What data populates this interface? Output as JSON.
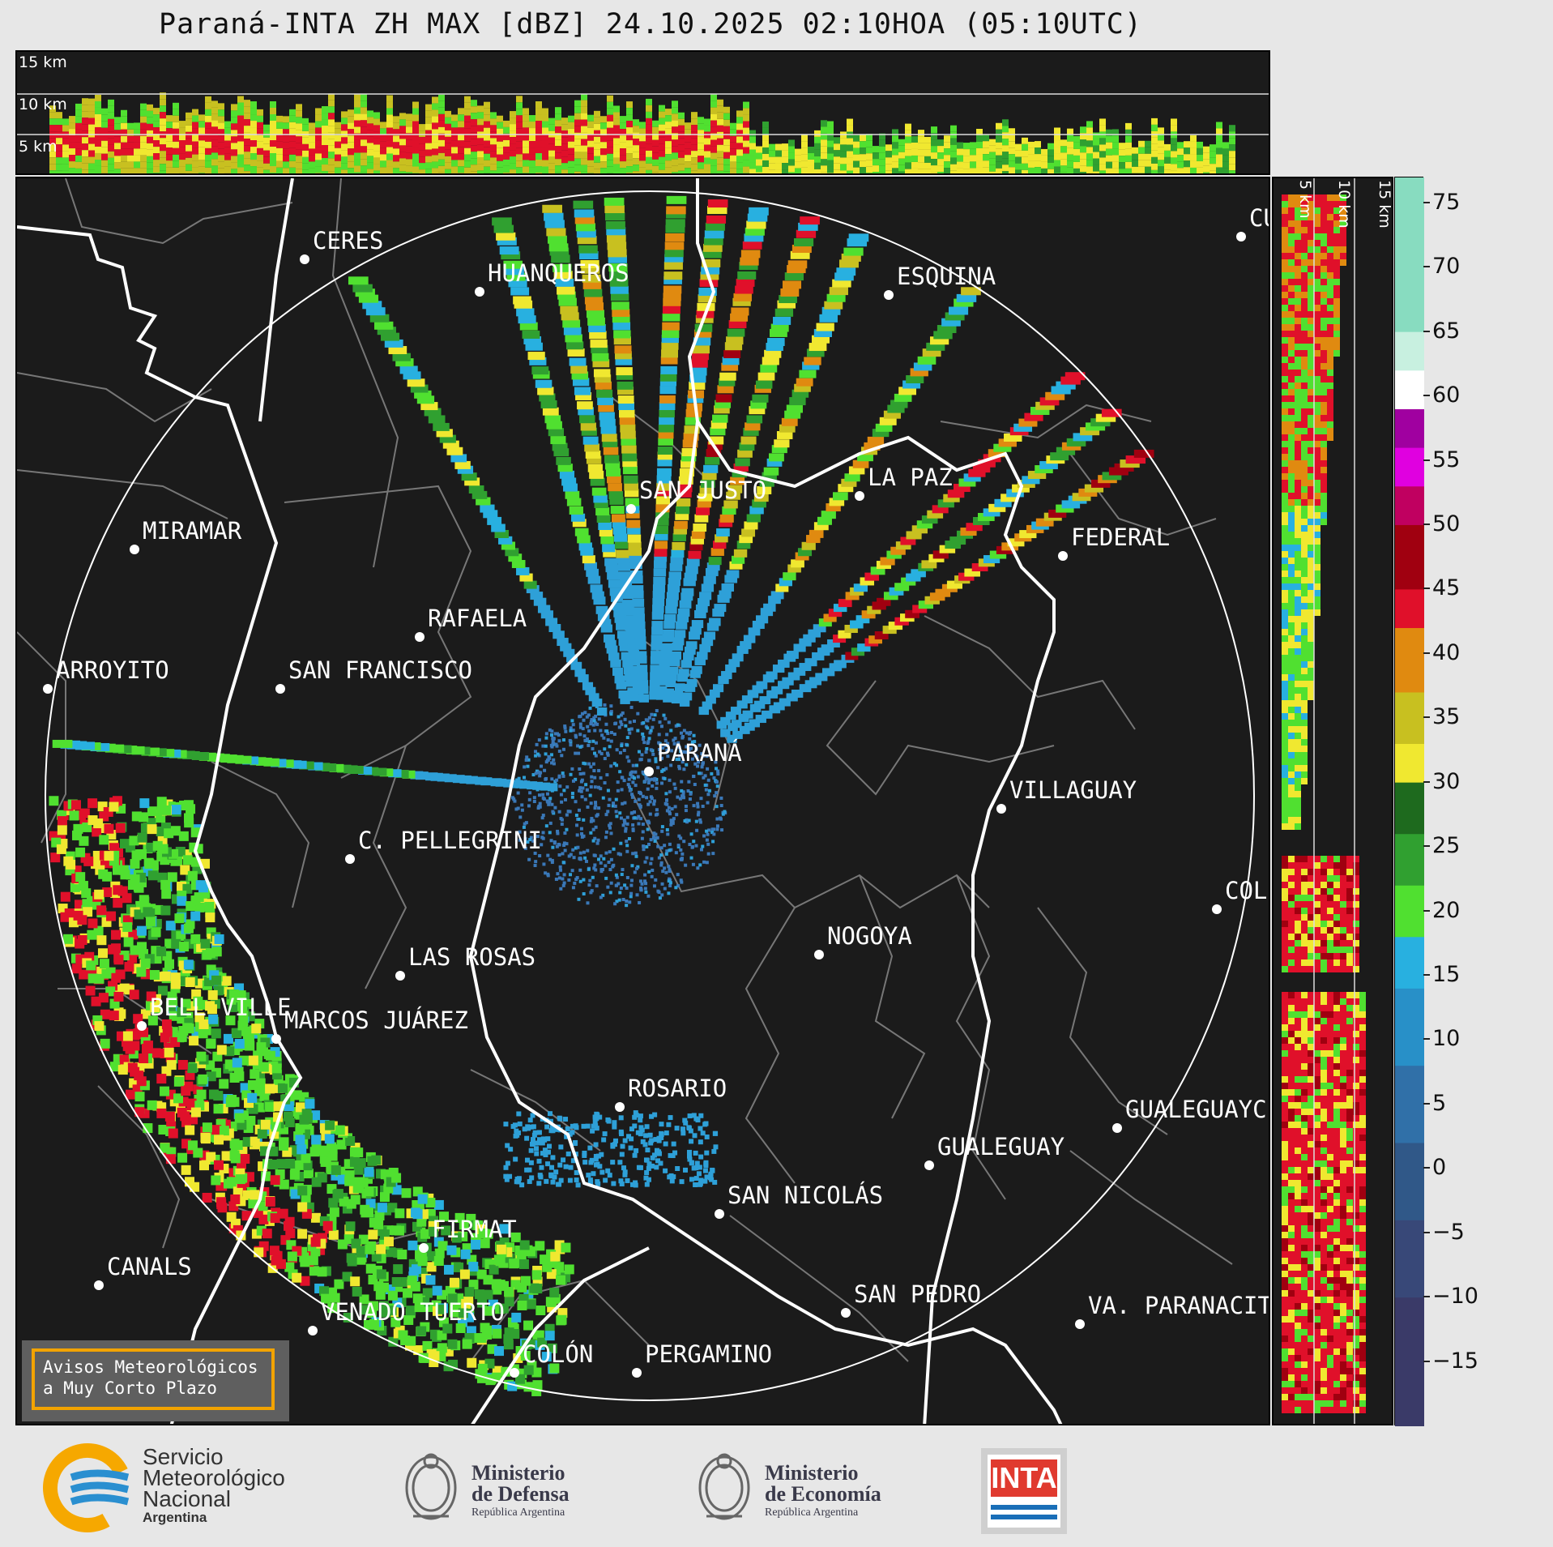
{
  "title": "Paraná-INTA ZH MAX [dBZ] 24.10.2025 02:10HOA (05:10UTC)",
  "top_panel": {
    "km_labels": [
      "15 km",
      "10 km",
      "5 km"
    ]
  },
  "side_panel": {
    "km_labels": [
      "5 km",
      "10 km",
      "15 km"
    ]
  },
  "colorbar": {
    "unit": "dBZ",
    "ticks": [
      "75",
      "70",
      "65",
      "60",
      "55",
      "50",
      "45",
      "40",
      "35",
      "30",
      "25",
      "20",
      "15",
      "10",
      "5",
      "0",
      "−5",
      "−10",
      "−15"
    ]
  },
  "cities": [
    {
      "name": "CERES"
    },
    {
      "name": "HUANQUEROS"
    },
    {
      "name": "ESQUINA"
    },
    {
      "name": "CU"
    },
    {
      "name": "SAN JUSTO"
    },
    {
      "name": "LA PAZ"
    },
    {
      "name": "MIRAMAR"
    },
    {
      "name": "FEDERAL"
    },
    {
      "name": "RAFAELA"
    },
    {
      "name": "ARROYITO"
    },
    {
      "name": "SAN FRANCISCO"
    },
    {
      "name": "PARANÁ"
    },
    {
      "name": "VILLAGUAY"
    },
    {
      "name": "C. PELLEGRINI"
    },
    {
      "name": "COLÓ"
    },
    {
      "name": "NOGOYA"
    },
    {
      "name": "LAS ROSAS"
    },
    {
      "name": "BELL VILLE"
    },
    {
      "name": "MARCOS JUÁREZ"
    },
    {
      "name": "ROSARIO"
    },
    {
      "name": "GUALEGUAYC"
    },
    {
      "name": "GUALEGUAY"
    },
    {
      "name": "SAN NICOLÁS"
    },
    {
      "name": "FIRMAT"
    },
    {
      "name": "CANALS"
    },
    {
      "name": "SAN PEDRO"
    },
    {
      "name": "VENADO TUERTO"
    },
    {
      "name": "VA. PARANACIT"
    },
    {
      "name": "COLÓN"
    },
    {
      "name": "PERGAMINO"
    }
  ],
  "notice": {
    "line1": "Avisos Meteorológicos",
    "line2": "a Muy Corto Plazo"
  },
  "logos": {
    "smn": {
      "line1": "Servicio",
      "line2": "Meteorológico",
      "line3": "Nacional",
      "line4": "Argentina"
    },
    "defensa": {
      "line1": "Ministerio",
      "line2": "de Defensa",
      "line3": "República Argentina"
    },
    "economia": {
      "line1": "Ministerio",
      "line2": "de Economía",
      "line3": "República Argentina"
    },
    "inta": {
      "text": "INTA"
    }
  }
}
